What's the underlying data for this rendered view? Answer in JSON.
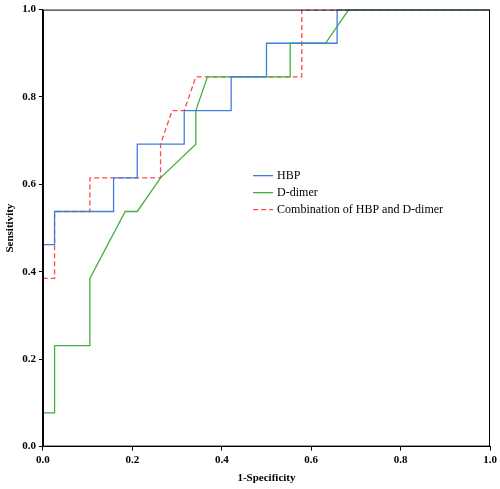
{
  "chart_data": {
    "type": "line",
    "x_label": "1-Specificity",
    "y_label": "Sensitivity",
    "xlim": [
      0,
      1.0
    ],
    "ylim": [
      0,
      1.0
    ],
    "xticks": [
      {
        "value": 0,
        "label": "0.0"
      },
      {
        "value": 0.2,
        "label": "0.2"
      },
      {
        "value": 0.4,
        "label": "0.4"
      },
      {
        "value": 0.6,
        "label": "0.6"
      },
      {
        "value": 0.8,
        "label": "0.8"
      },
      {
        "value": 1.0,
        "label": "1.0"
      }
    ],
    "yticks": [
      {
        "value": 0,
        "label": "0.0"
      },
      {
        "value": 0.2,
        "label": "0.2"
      },
      {
        "value": 0.4,
        "label": "0.4"
      },
      {
        "value": 0.6,
        "label": "0.6"
      },
      {
        "value": 0.8,
        "label": "0.8"
      },
      {
        "value": 1.0,
        "label": "1.0"
      }
    ],
    "grid": false,
    "legend": "center",
    "series": [
      {
        "name": "HBP",
        "color": "#3f7fdc",
        "line_style": "solid",
        "x": [
          0,
          0,
          0.026,
          0.026,
          0.158,
          0.158,
          0.211,
          0.211,
          0.316,
          0.316,
          0.421,
          0.421,
          0.5,
          0.5,
          0.658,
          0.658,
          1.0
        ],
        "values": [
          0,
          0.462,
          0.462,
          0.538,
          0.538,
          0.615,
          0.615,
          0.692,
          0.692,
          0.769,
          0.769,
          0.846,
          0.846,
          0.923,
          0.923,
          1.0,
          1.0
        ]
      },
      {
        "name": "D-dimer",
        "color": "#44b03c",
        "line_style": "solid",
        "x": [
          0,
          0,
          0.026,
          0.026,
          0.105,
          0.105,
          0.184,
          0.211,
          0.263,
          0.342,
          0.342,
          0.368,
          0.553,
          0.553,
          0.632,
          0.684,
          1.0
        ],
        "values": [
          0,
          0.077,
          0.077,
          0.231,
          0.231,
          0.385,
          0.538,
          0.538,
          0.615,
          0.692,
          0.769,
          0.846,
          0.846,
          0.923,
          0.923,
          1.0,
          1.0
        ]
      },
      {
        "name": "Combination of HBP and D-dimer",
        "color": "#ff4a4a",
        "line_style": "dashed",
        "x": [
          0,
          0,
          0.026,
          0.026,
          0.105,
          0.105,
          0.263,
          0.263,
          0.289,
          0.316,
          0.342,
          0.579,
          0.579,
          1.0
        ],
        "values": [
          0,
          0.385,
          0.385,
          0.538,
          0.538,
          0.615,
          0.615,
          0.692,
          0.769,
          0.769,
          0.846,
          0.846,
          1.0,
          1.0
        ]
      }
    ]
  }
}
